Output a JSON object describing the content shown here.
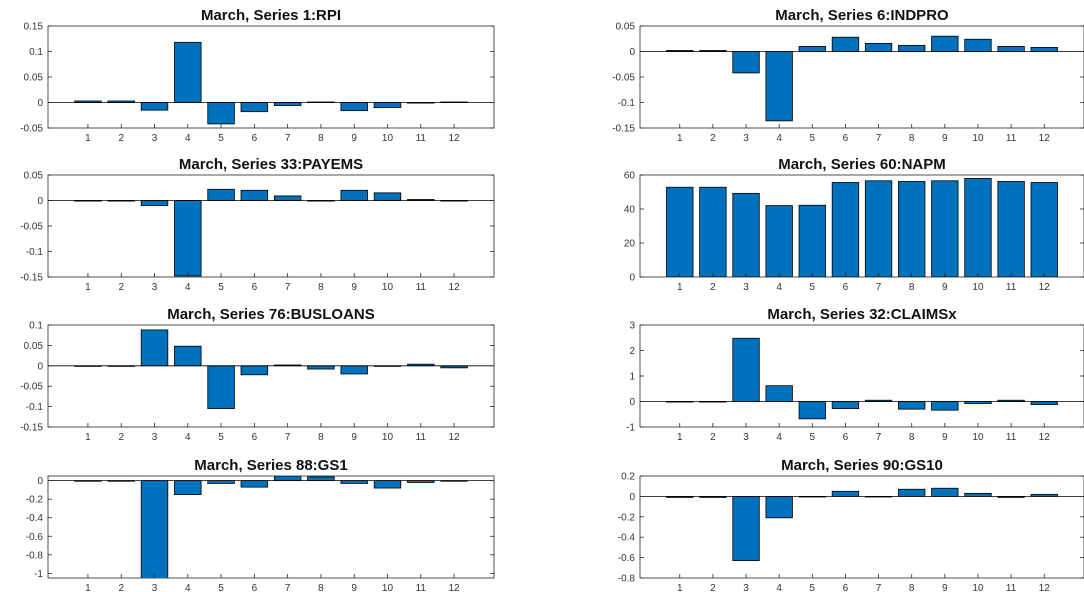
{
  "figure": {
    "bar_color": "#0072BD",
    "bar_edge_color": "#000000",
    "axis_color": "#262626"
  },
  "chart_data": [
    {
      "type": "bar",
      "title": "March, Series 1:RPI",
      "categories": [
        "1",
        "2",
        "3",
        "4",
        "5",
        "6",
        "7",
        "8",
        "9",
        "10",
        "11",
        "12"
      ],
      "values": [
        0.003,
        0.003,
        -0.015,
        0.118,
        -0.042,
        -0.018,
        -0.006,
        0.001,
        -0.016,
        -0.01,
        0,
        0.001
      ],
      "ylim": [
        -0.05,
        0.15
      ],
      "yticks": [
        -0.05,
        0,
        0.05,
        0.1,
        0.15
      ],
      "ytick_labels": [
        "-0.05",
        "0",
        "0.05",
        "0.1",
        "0.15"
      ],
      "grid": false,
      "xlabel": "",
      "ylabel": ""
    },
    {
      "type": "bar",
      "title": "March, Series 6:INDPRO",
      "categories": [
        "1",
        "2",
        "3",
        "4",
        "5",
        "6",
        "7",
        "8",
        "9",
        "10",
        "11",
        "12"
      ],
      "values": [
        0.002,
        0.002,
        -0.042,
        -0.136,
        0.01,
        0.028,
        0.016,
        0.012,
        0.03,
        0.024,
        0.01,
        0.008
      ],
      "ylim": [
        -0.15,
        0.05
      ],
      "yticks": [
        -0.15,
        -0.1,
        -0.05,
        0,
        0.05
      ],
      "ytick_labels": [
        "-0.15",
        "-0.1",
        "-0.05",
        "0",
        "0.05"
      ],
      "grid": false,
      "xlabel": "",
      "ylabel": ""
    },
    {
      "type": "bar",
      "title": "March, Series 33:PAYEMS",
      "categories": [
        "1",
        "2",
        "3",
        "4",
        "5",
        "6",
        "7",
        "8",
        "9",
        "10",
        "11",
        "12"
      ],
      "values": [
        0,
        0,
        -0.01,
        -0.148,
        0.022,
        0.02,
        0.009,
        0,
        0.02,
        0.015,
        0.002,
        0
      ],
      "ylim": [
        -0.15,
        0.05
      ],
      "yticks": [
        -0.15,
        -0.1,
        -0.05,
        0,
        0.05
      ],
      "ytick_labels": [
        "-0.15",
        "-0.1",
        "-0.05",
        "0",
        "0.05"
      ],
      "grid": false,
      "xlabel": "",
      "ylabel": ""
    },
    {
      "type": "bar",
      "title": "March, Series 60:NAPM",
      "categories": [
        "1",
        "2",
        "3",
        "4",
        "5",
        "6",
        "7",
        "8",
        "9",
        "10",
        "11",
        "12"
      ],
      "values": [
        52.8,
        52.8,
        49.2,
        42,
        42.2,
        55.6,
        56.6,
        56.2,
        56.6,
        58,
        56.2,
        55.6
      ],
      "ylim": [
        0,
        60
      ],
      "yticks": [
        0,
        20,
        40,
        60
      ],
      "ytick_labels": [
        "0",
        "20",
        "40",
        "60"
      ],
      "grid": false,
      "xlabel": "",
      "ylabel": ""
    },
    {
      "type": "bar",
      "title": "March, Series 76:BUSLOANS",
      "categories": [
        "1",
        "2",
        "3",
        "4",
        "5",
        "6",
        "7",
        "8",
        "9",
        "10",
        "11",
        "12"
      ],
      "values": [
        0,
        0,
        0.088,
        0.048,
        -0.105,
        -0.022,
        0.002,
        -0.008,
        -0.02,
        0,
        0.004,
        -0.005
      ],
      "ylim": [
        -0.15,
        0.1
      ],
      "yticks": [
        -0.15,
        -0.1,
        -0.05,
        0,
        0.05,
        0.1
      ],
      "ytick_labels": [
        "-0.15",
        "-0.1",
        "-0.05",
        "0",
        "0.05",
        "0.1"
      ],
      "grid": false,
      "xlabel": "",
      "ylabel": ""
    },
    {
      "type": "bar",
      "title": "March, Series 32:CLAIMSx",
      "categories": [
        "1",
        "2",
        "3",
        "4",
        "5",
        "6",
        "7",
        "8",
        "9",
        "10",
        "11",
        "12"
      ],
      "values": [
        0,
        0,
        2.48,
        0.62,
        -0.68,
        -0.28,
        0.05,
        -0.3,
        -0.34,
        -0.08,
        0.05,
        -0.12
      ],
      "ylim": [
        -1,
        3
      ],
      "yticks": [
        -1,
        0,
        1,
        2,
        3
      ],
      "ytick_labels": [
        "-1",
        "0",
        "1",
        "2",
        "3"
      ],
      "grid": false,
      "xlabel": "",
      "ylabel": ""
    },
    {
      "type": "bar",
      "title": "March, Series 88:GS1",
      "categories": [
        "1",
        "2",
        "3",
        "4",
        "5",
        "6",
        "7",
        "8",
        "9",
        "10",
        "11",
        "12"
      ],
      "values": [
        0,
        0,
        -1.1,
        -0.15,
        -0.03,
        -0.07,
        0.05,
        0.04,
        -0.03,
        -0.08,
        -0.02,
        0
      ],
      "ylim": [
        -1.05,
        0.05
      ],
      "yticks": [
        -1,
        -0.8,
        -0.6,
        -0.4,
        -0.2,
        0
      ],
      "ytick_labels": [
        "-1",
        "-0.8",
        "-0.6",
        "-0.4",
        "-0.2",
        "0"
      ],
      "grid": false,
      "xlabel": "",
      "ylabel": ""
    },
    {
      "type": "bar",
      "title": "March, Series 90:GS10",
      "categories": [
        "1",
        "2",
        "3",
        "4",
        "5",
        "6",
        "7",
        "8",
        "9",
        "10",
        "11",
        "12"
      ],
      "values": [
        -0.01,
        -0.01,
        -0.63,
        -0.21,
        0,
        0.05,
        0,
        0.07,
        0.08,
        0.03,
        -0.01,
        0.02
      ],
      "ylim": [
        -0.8,
        0.2
      ],
      "yticks": [
        -0.8,
        -0.6,
        -0.4,
        -0.2,
        0,
        0.2
      ],
      "ytick_labels": [
        "-0.8",
        "-0.6",
        "-0.4",
        "-0.2",
        "0",
        "0.2"
      ],
      "grid": false,
      "xlabel": "",
      "ylabel": ""
    }
  ]
}
